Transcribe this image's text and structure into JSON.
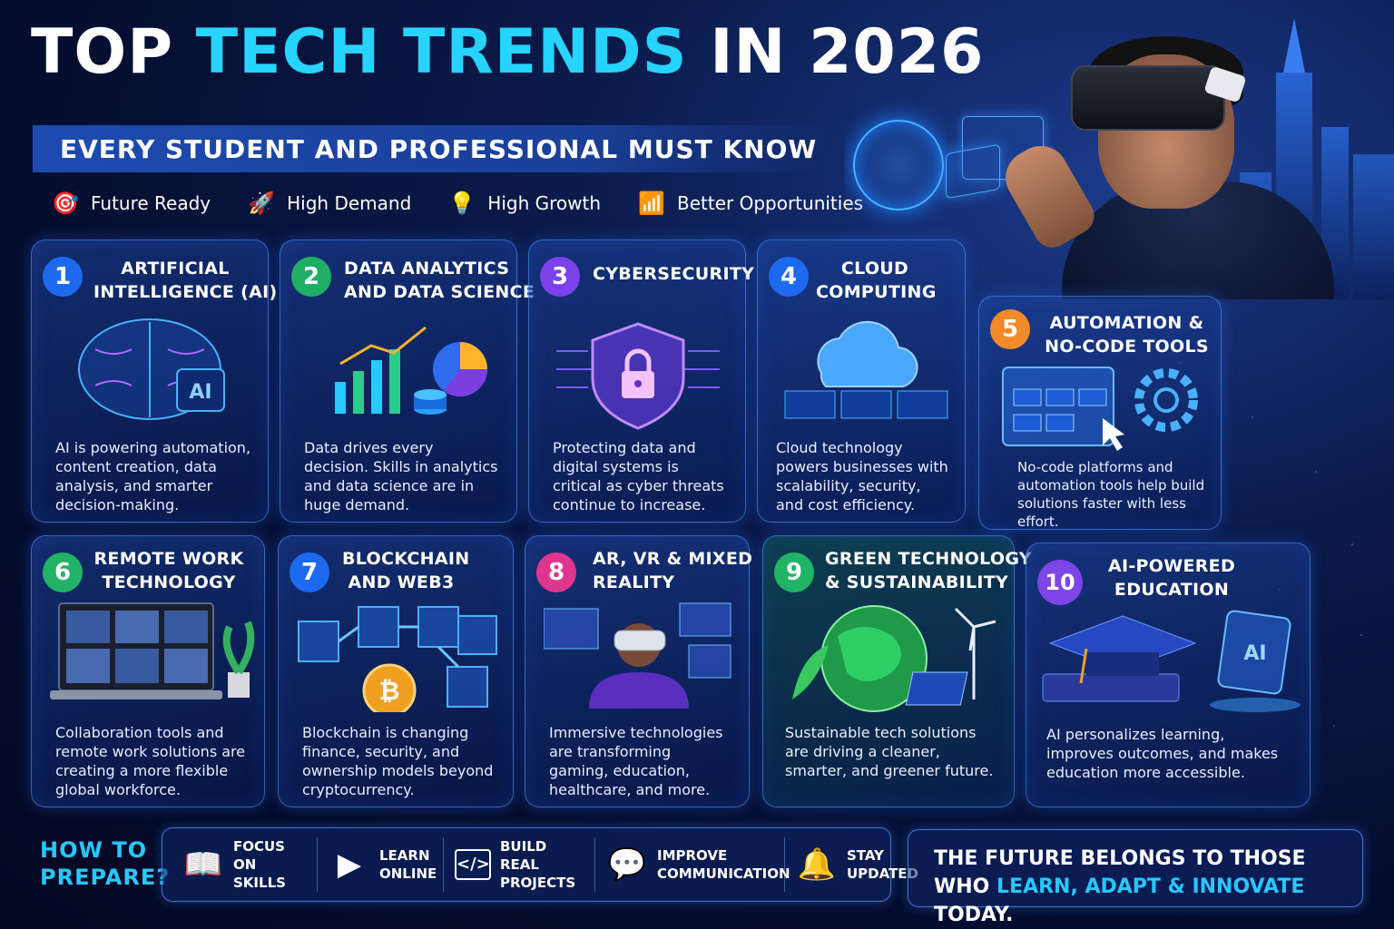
{
  "header": {
    "title_part1": "TOP ",
    "title_part2": "TECH TRENDS",
    "title_part3": " IN 2026",
    "subtitle": "EVERY STUDENT AND PROFESSIONAL MUST KNOW"
  },
  "chips": [
    {
      "icon": "target-icon",
      "glyph": "🎯",
      "label": "Future Ready"
    },
    {
      "icon": "rocket-icon",
      "glyph": "🚀",
      "label": "High Demand"
    },
    {
      "icon": "lightbulb-icon",
      "glyph": "💡",
      "label": "High Growth"
    },
    {
      "icon": "growth-chart-icon",
      "glyph": "📶",
      "label": "Better Opportunities"
    }
  ],
  "trends": [
    {
      "num": "1",
      "title_l1": "ARTIFICIAL",
      "title_l2": "INTELLIGENCE (AI)",
      "art_label": "AI",
      "desc": "AI is powering automation, content creation, data analysis, and smarter decision-making."
    },
    {
      "num": "2",
      "title_l1": "DATA ANALYTICS",
      "title_l2": "AND DATA SCIENCE",
      "desc": "Data drives every decision. Skills in analytics and data science are in huge demand."
    },
    {
      "num": "3",
      "title_l1": "CYBERSECURITY",
      "title_l2": "",
      "desc": "Protecting data and digital systems is critical as cyber threats continue to increase."
    },
    {
      "num": "4",
      "title_l1": "CLOUD",
      "title_l2": "COMPUTING",
      "desc": "Cloud technology powers businesses with scalability, security, and cost efficiency."
    },
    {
      "num": "5",
      "title_l1": "AUTOMATION &",
      "title_l2": "NO-CODE TOOLS",
      "desc": "No-code platforms and automation tools help build solutions faster with less effort."
    },
    {
      "num": "6",
      "title_l1": "REMOTE WORK",
      "title_l2": "TECHNOLOGY",
      "desc": "Collaboration tools and remote work solutions are creating a more flexible global workforce."
    },
    {
      "num": "7",
      "title_l1": "BLOCKCHAIN",
      "title_l2": "AND WEB3",
      "desc": "Blockchain is changing finance, security, and ownership models beyond cryptocurrency."
    },
    {
      "num": "8",
      "title_l1": "AR, VR & MIXED",
      "title_l2": "REALITY",
      "desc": "Immersive technologies are transforming gaming, education, healthcare, and more."
    },
    {
      "num": "9",
      "title_l1": "GREEN TECHNOLOGY",
      "title_l2": "& SUSTAINABILITY",
      "desc": "Sustainable tech solutions are driving a cleaner, smarter, and greener future."
    },
    {
      "num": "10",
      "title_l1": "AI-POWERED",
      "title_l2": "EDUCATION",
      "art_label": "AI",
      "desc": "AI personalizes learning, improves outcomes, and makes education more accessible."
    }
  ],
  "prepare": {
    "heading_l1": "HOW TO",
    "heading_l2": "PREPARE?",
    "items": [
      {
        "icon": "book-icon",
        "glyph": "📖",
        "l1": "FOCUS ON",
        "l2": "SKILLS"
      },
      {
        "icon": "video-play-icon",
        "glyph": "▶",
        "l1": "LEARN",
        "l2": "ONLINE"
      },
      {
        "icon": "code-window-icon",
        "glyph": "</>",
        "l1": "BUILD REAL",
        "l2": "PROJECTS"
      },
      {
        "icon": "chat-person-icon",
        "glyph": "💬",
        "l1": "IMPROVE",
        "l2": "COMMUNICATION"
      },
      {
        "icon": "bell-icon",
        "glyph": "🔔",
        "l1": "STAY",
        "l2": "UPDATED"
      }
    ]
  },
  "footer": {
    "line1": "THE FUTURE BELONGS TO THOSE",
    "line2_a": "WHO ",
    "line2_hl": "LEARN, ADAPT & INNOVATE",
    "line2_b": " TODAY."
  }
}
